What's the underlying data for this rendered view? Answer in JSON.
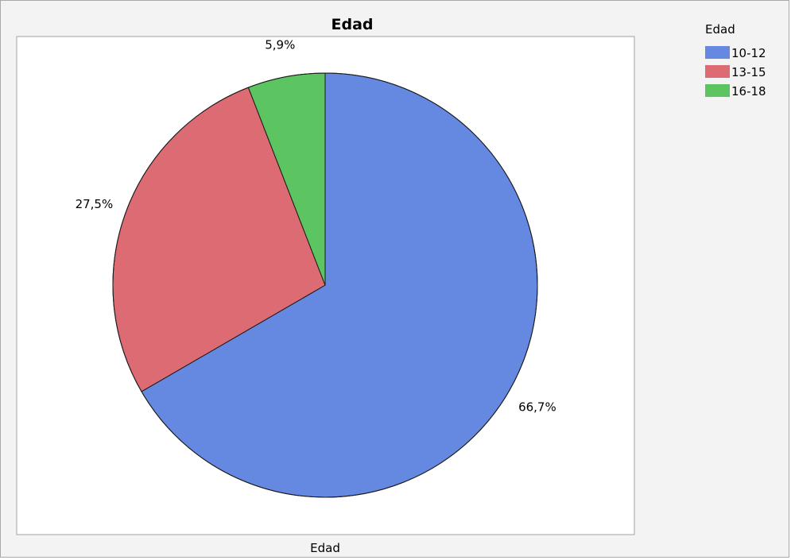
{
  "chart_data": {
    "type": "pie",
    "title": "Edad",
    "xlabel": "Edad",
    "legend_title": "Edad",
    "legend_position": "top-right",
    "slices": [
      {
        "label": "10-12",
        "value": 66.7,
        "display": "66,7%",
        "color": "#6589E1"
      },
      {
        "label": "13-15",
        "value": 27.5,
        "display": "27,5%",
        "color": "#DD6B73"
      },
      {
        "label": "16-18",
        "value": 5.9,
        "display": "5,9%",
        "color": "#5CC461"
      }
    ]
  }
}
